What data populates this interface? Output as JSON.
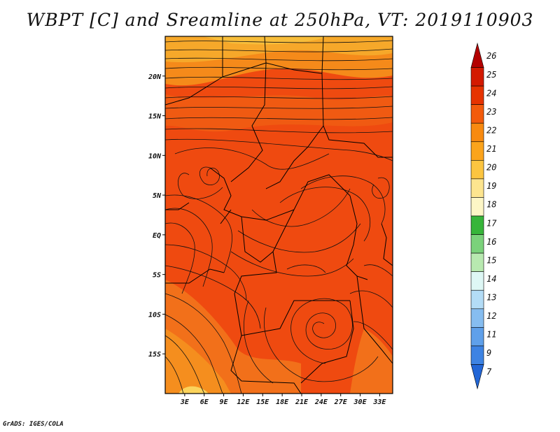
{
  "title": "WBPT [C] and Sreamline at 250hPa, VT: 2019110903",
  "credit": "GrADS: IGES/COLA",
  "map": {
    "lon_range": [
      0,
      35
    ],
    "lat_range": [
      -20,
      25
    ],
    "x_ticks": [
      "3E",
      "6E",
      "9E",
      "12E",
      "15E",
      "18E",
      "21E",
      "24E",
      "27E",
      "30E",
      "33E"
    ],
    "x_tick_values": [
      3,
      6,
      9,
      12,
      15,
      18,
      21,
      24,
      27,
      30,
      33
    ],
    "y_ticks": [
      "20N",
      "15N",
      "10N",
      "5N",
      "EQ",
      "5S",
      "10S",
      "15S"
    ],
    "y_tick_values": [
      20,
      15,
      10,
      5,
      0,
      -5,
      -10,
      -15
    ],
    "field": "wet-bulb potential temperature",
    "streamline_level": "250hPa",
    "fill_colors": {
      "base": "#ef4a10",
      "high": "#e83a0a",
      "mid": "#f06a16",
      "warm": "#f4a020",
      "cool": "#f6b433",
      "pale": "#fbe38c"
    }
  },
  "colorbar": {
    "labels": [
      "26",
      "25",
      "24",
      "23",
      "22",
      "21",
      "20",
      "19",
      "18",
      "17",
      "16",
      "15",
      "14",
      "13",
      "12",
      "11",
      "9",
      "7"
    ],
    "colors": [
      "#b30000",
      "#d31a00",
      "#e63300",
      "#f35b0c",
      "#f88a10",
      "#fba41c",
      "#fcc540",
      "#fde58f",
      "#fdf6c6",
      "#37b53a",
      "#7bd27b",
      "#b8e9b0",
      "#def7f5",
      "#b3dcf6",
      "#86bdf0",
      "#5fa0ea",
      "#3d83e3",
      "#2266d6"
    ]
  }
}
